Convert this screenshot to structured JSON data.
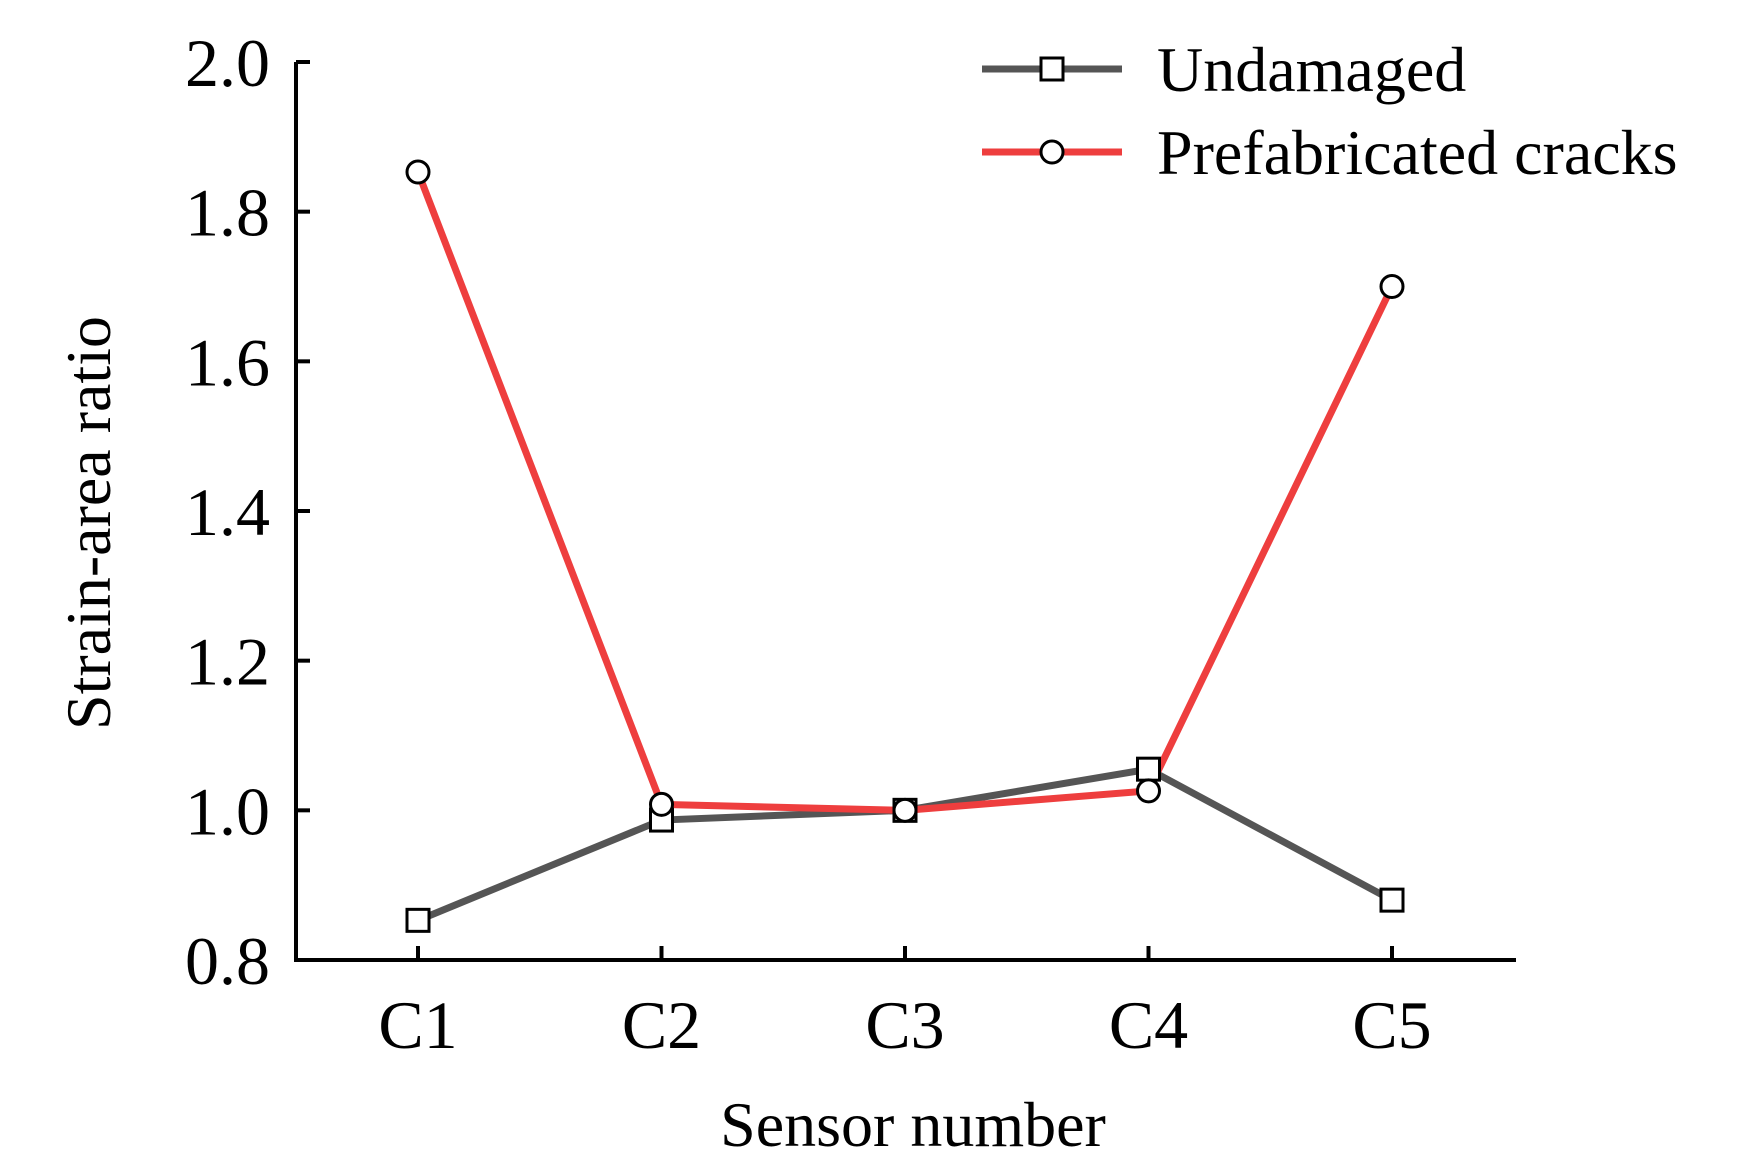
{
  "chart_data": {
    "type": "line",
    "title": "",
    "xlabel": "Sensor number",
    "ylabel": "Strain-area ratio",
    "categories": [
      "C1",
      "C2",
      "C3",
      "C4",
      "C5"
    ],
    "ylim": [
      0.8,
      2.0
    ],
    "yticks": [
      0.8,
      1.0,
      1.2,
      1.4,
      1.6,
      1.8,
      2.0
    ],
    "ytick_labels": [
      "0.8",
      "1.0",
      "1.2",
      "1.4",
      "1.6",
      "1.8",
      "2.0"
    ],
    "grid": false,
    "legend_position": "top-right",
    "series": [
      {
        "name": "Undamaged",
        "values": [
          0.853,
          0.987,
          1.0,
          1.055,
          0.88
        ],
        "color": "#555555",
        "marker": "square"
      },
      {
        "name": "Prefabricated cracks",
        "values": [
          1.853,
          1.008,
          1.0,
          1.026,
          1.7
        ],
        "color": "#ee3e3e",
        "marker": "circle"
      }
    ]
  }
}
